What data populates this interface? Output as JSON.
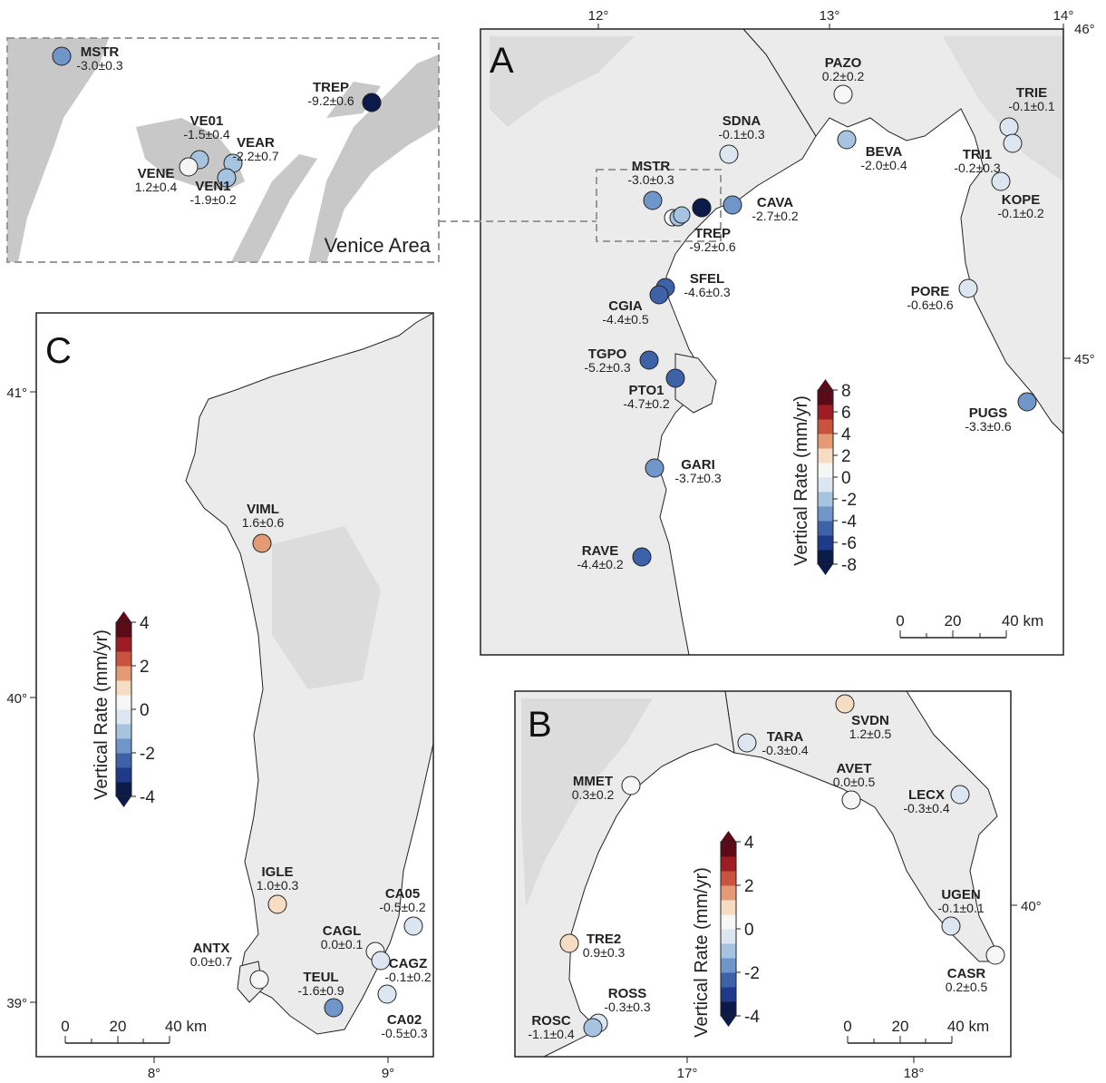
{
  "colors": {
    "land": "#ebebeb",
    "sea": "#ffffff",
    "inset_land": "#c8c8c8",
    "frame": "#222222",
    "dashed": "#999999"
  },
  "colorbar": {
    "title": "Vertical Rate (mm/yr)",
    "colors": [
      "#0b1a48",
      "#1f3a8a",
      "#3d62a8",
      "#6f95c9",
      "#a6c3e0",
      "#dbe6f1",
      "#f6f6f6",
      "#f6dcc3",
      "#e49b75",
      "#c8533f",
      "#9e1d24",
      "#5b0a17"
    ]
  },
  "panels": {
    "A": {
      "letter": "A",
      "lon_ticks": [
        "12°",
        "13°",
        "14°"
      ],
      "lat_ticks": [
        "46°",
        "45°"
      ],
      "colorbar_ticks": [
        "8",
        "6",
        "4",
        "2",
        "0",
        "-2",
        "-4",
        "-6",
        "-8"
      ],
      "scale": {
        "labels": [
          "0",
          "20",
          "40 km"
        ]
      },
      "inset_label": "Venice Area",
      "stations": [
        {
          "name": "PAZO",
          "rate": "0.2±0.2",
          "value": 0.2
        },
        {
          "name": "TRIE",
          "rate": "-0.1±0.1",
          "value": -0.1
        },
        {
          "name": "SDNA",
          "rate": "-0.1±0.3",
          "value": -0.1
        },
        {
          "name": "BEVA",
          "rate": "-2.0±0.4",
          "value": -2.0
        },
        {
          "name": "TRI1",
          "rate": "-0.2±0.3",
          "value": -0.2
        },
        {
          "name": "MSTR",
          "rate": "-3.0±0.3",
          "value": -3.0
        },
        {
          "name": "CAVA",
          "rate": "-2.7±0.2",
          "value": -2.7
        },
        {
          "name": "KOPE",
          "rate": "-0.1±0.2",
          "value": -0.1
        },
        {
          "name": "TREP",
          "rate": "-9.2±0.6",
          "value": -9.2
        },
        {
          "name": "SFEL",
          "rate": "-4.6±0.3",
          "value": -4.6
        },
        {
          "name": "CGIA",
          "rate": "-4.4±0.5",
          "value": -4.4
        },
        {
          "name": "PORE",
          "rate": "-0.6±0.6",
          "value": -0.6
        },
        {
          "name": "TGPO",
          "rate": "-5.2±0.3",
          "value": -5.2
        },
        {
          "name": "PTO1",
          "rate": "-4.7±0.2",
          "value": -4.7
        },
        {
          "name": "PUGS",
          "rate": "-3.3±0.6",
          "value": -3.3
        },
        {
          "name": "GARI",
          "rate": "-3.7±0.3",
          "value": -3.7
        },
        {
          "name": "RAVE",
          "rate": "-4.4±0.2",
          "value": -4.4
        }
      ],
      "unlabeled_values": [
        1.2,
        -1.5,
        -2.2
      ]
    },
    "inset": {
      "stations": [
        {
          "name": "MSTR",
          "rate": "-3.0±0.3",
          "value": -3.0
        },
        {
          "name": "TREP",
          "rate": "-9.2±0.6",
          "value": -9.2
        },
        {
          "name": "VE01",
          "rate": "-1.5±0.4",
          "value": -1.5
        },
        {
          "name": "VEAR",
          "rate": "-2.2±0.7",
          "value": -2.2
        },
        {
          "name": "VENE",
          "rate": "1.2±0.4",
          "value": 1.2
        },
        {
          "name": "VEN1",
          "rate": "-1.9±0.2",
          "value": -1.9
        }
      ]
    },
    "B": {
      "letter": "B",
      "lon_ticks": [
        "17°",
        "18°"
      ],
      "lat_ticks": [
        "40°"
      ],
      "colorbar_ticks": [
        "4",
        "2",
        "0",
        "-2",
        "-4"
      ],
      "scale": {
        "labels": [
          "0",
          "20",
          "40 km"
        ]
      },
      "stations": [
        {
          "name": "SVDN",
          "rate": "1.2±0.5",
          "value": 1.2
        },
        {
          "name": "TARA",
          "rate": "-0.3±0.4",
          "value": -0.3
        },
        {
          "name": "MMET",
          "rate": "0.3±0.2",
          "value": 0.3
        },
        {
          "name": "AVET",
          "rate": "0.0±0.5",
          "value": 0.0
        },
        {
          "name": "LECX",
          "rate": "-0.3±0.4",
          "value": -0.3
        },
        {
          "name": "UGEN",
          "rate": "-0.1±0.1",
          "value": -0.1
        },
        {
          "name": "TRE2",
          "rate": "0.9±0.3",
          "value": 0.9
        },
        {
          "name": "CASR",
          "rate": "0.2±0.5",
          "value": 0.2
        },
        {
          "name": "ROSS",
          "rate": "-0.3±0.3",
          "value": -0.3
        },
        {
          "name": "ROSC",
          "rate": "-1.1±0.4",
          "value": -1.1
        }
      ]
    },
    "C": {
      "letter": "C",
      "lon_ticks": [
        "8°",
        "9°"
      ],
      "lat_ticks": [
        "41°",
        "40°",
        "39°"
      ],
      "colorbar_ticks": [
        "4",
        "2",
        "0",
        "-2",
        "-4"
      ],
      "scale": {
        "labels": [
          "0",
          "20",
          "40 km"
        ]
      },
      "stations": [
        {
          "name": "VIML",
          "rate": "1.6±0.6",
          "value": 1.6
        },
        {
          "name": "IGLE",
          "rate": "1.0±0.3",
          "value": 1.0
        },
        {
          "name": "CA05",
          "rate": "-0.5±0.2",
          "value": -0.5
        },
        {
          "name": "CAGL",
          "rate": "0.0±0.1",
          "value": 0.0
        },
        {
          "name": "ANTX",
          "rate": "0.0±0.7",
          "value": 0.0
        },
        {
          "name": "CAGZ",
          "rate": "-0.1±0.2",
          "value": -0.1
        },
        {
          "name": "TEUL",
          "rate": "-1.6±0.9",
          "value": -1.6
        },
        {
          "name": "CA02",
          "rate": "-0.5±0.3",
          "value": -0.5
        }
      ]
    }
  }
}
